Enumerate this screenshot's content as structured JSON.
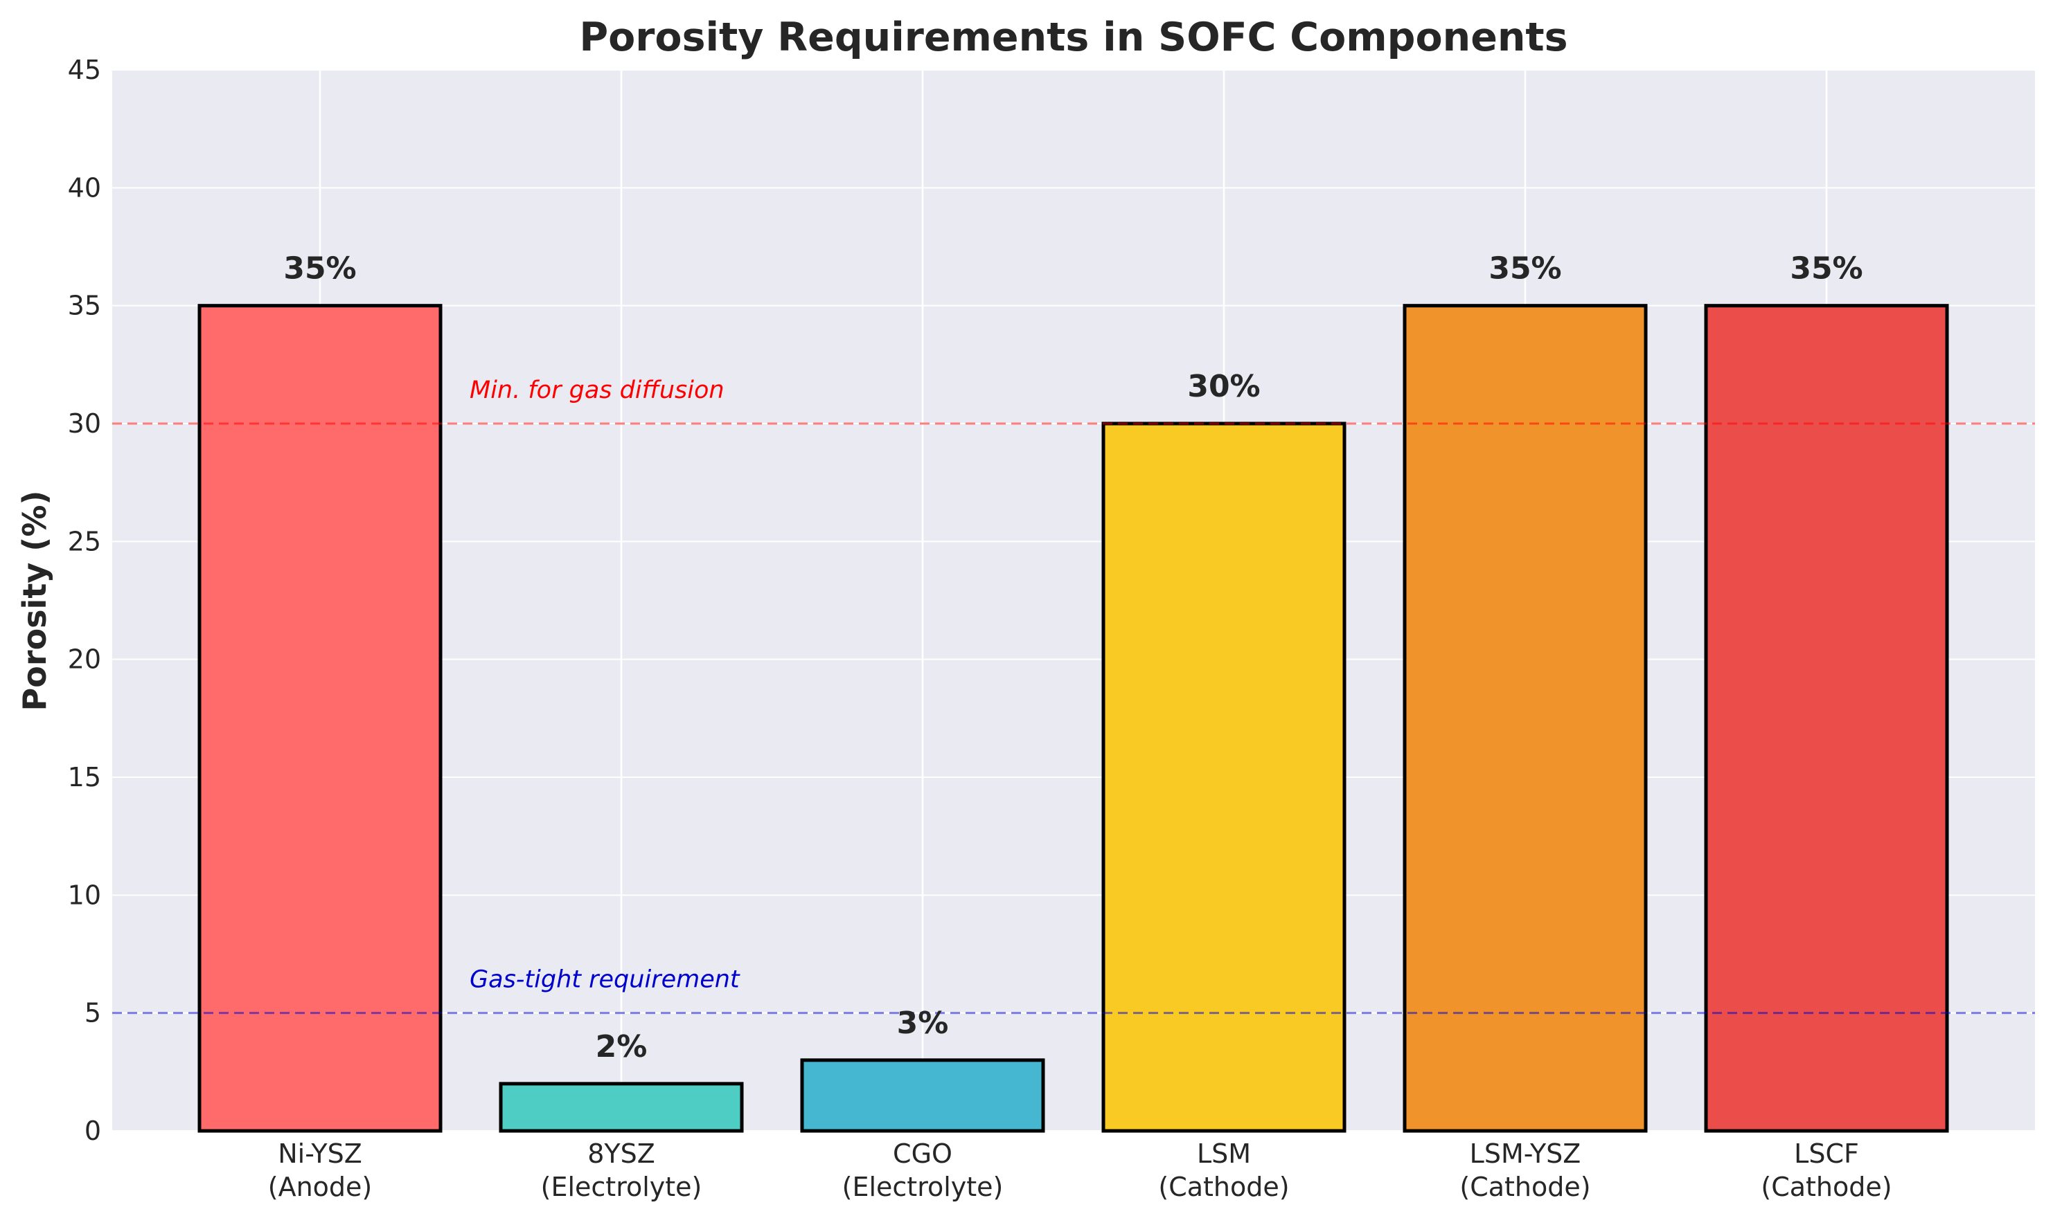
{
  "chart_data": {
    "type": "bar",
    "title": "Porosity Requirements in SOFC Components",
    "xlabel": "",
    "ylabel": "Porosity (%)",
    "ylim": [
      0,
      45
    ],
    "yticks": [
      0,
      5,
      10,
      15,
      20,
      25,
      30,
      35,
      40,
      45
    ],
    "grid": true,
    "categories": [
      {
        "name": "Ni-YSZ",
        "role": "(Anode)"
      },
      {
        "name": "8YSZ",
        "role": "(Electrolyte)"
      },
      {
        "name": "CGO",
        "role": "(Electrolyte)"
      },
      {
        "name": "LSM",
        "role": "(Cathode)"
      },
      {
        "name": "LSM-YSZ",
        "role": "(Cathode)"
      },
      {
        "name": "LSCF",
        "role": "(Cathode)"
      }
    ],
    "values": [
      35,
      2,
      3,
      30,
      35,
      35
    ],
    "value_labels": [
      "35%",
      "2%",
      "3%",
      "30%",
      "35%",
      "35%"
    ],
    "bar_colors": [
      "#FF6B6B",
      "#4ECDC4",
      "#45B7D1",
      "#F9CA24",
      "#F0932B",
      "#EB4D4B"
    ],
    "reference_lines": [
      {
        "y": 30,
        "label": "Min. for gas diffusion",
        "color": "#FF0000"
      },
      {
        "y": 5,
        "label": "Gas-tight requirement",
        "color": "#0000CC"
      }
    ]
  }
}
